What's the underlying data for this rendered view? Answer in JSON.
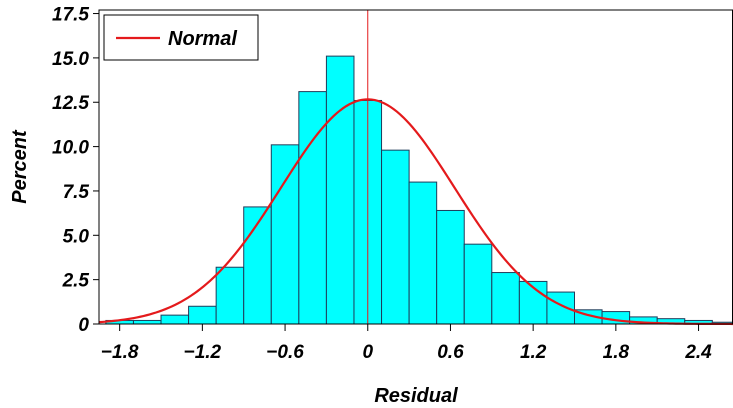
{
  "chart_data": {
    "type": "bar",
    "subtype": "histogram with fitted normal curve",
    "xlabel": "Residual",
    "ylabel": "Percent",
    "xlim": [
      -1.95,
      2.65
    ],
    "ylim": [
      0,
      17.7
    ],
    "x_ticks": [
      -1.8,
      -1.2,
      -0.6,
      0,
      0.6,
      1.2,
      1.8,
      2.4
    ],
    "x_tick_labels": [
      "−1.8",
      "−1.2",
      "−0.6",
      "0",
      "0.6",
      "1.2",
      "1.8",
      "2.4"
    ],
    "y_ticks": [
      0,
      2.5,
      5,
      7.5,
      10,
      12.5,
      15,
      17.5
    ],
    "y_tick_labels": [
      "0",
      "2.5",
      "5.0",
      "7.5",
      "10.0",
      "12.5",
      "15.0",
      "17.5"
    ],
    "bin_width": 0.2,
    "bins": [
      {
        "x0": -1.9,
        "x1": -1.7,
        "value": 0.2
      },
      {
        "x0": -1.7,
        "x1": -1.5,
        "value": 0.2
      },
      {
        "x0": -1.5,
        "x1": -1.3,
        "value": 0.5
      },
      {
        "x0": -1.3,
        "x1": -1.1,
        "value": 1.0
      },
      {
        "x0": -1.1,
        "x1": -0.9,
        "value": 3.2
      },
      {
        "x0": -0.9,
        "x1": -0.7,
        "value": 6.6
      },
      {
        "x0": -0.7,
        "x1": -0.5,
        "value": 10.1
      },
      {
        "x0": -0.5,
        "x1": -0.3,
        "value": 13.1
      },
      {
        "x0": -0.3,
        "x1": -0.1,
        "value": 15.1
      },
      {
        "x0": -0.1,
        "x1": 0.1,
        "value": 12.6
      },
      {
        "x0": 0.1,
        "x1": 0.3,
        "value": 9.8
      },
      {
        "x0": 0.3,
        "x1": 0.5,
        "value": 8.0
      },
      {
        "x0": 0.5,
        "x1": 0.7,
        "value": 6.4
      },
      {
        "x0": 0.7,
        "x1": 0.9,
        "value": 4.5
      },
      {
        "x0": 0.9,
        "x1": 1.1,
        "value": 2.9
      },
      {
        "x0": 1.1,
        "x1": 1.3,
        "value": 2.4
      },
      {
        "x0": 1.3,
        "x1": 1.5,
        "value": 1.8
      },
      {
        "x0": 1.5,
        "x1": 1.7,
        "value": 0.8
      },
      {
        "x0": 1.7,
        "x1": 1.9,
        "value": 0.7
      },
      {
        "x0": 1.9,
        "x1": 2.1,
        "value": 0.4
      },
      {
        "x0": 2.1,
        "x1": 2.3,
        "value": 0.3
      },
      {
        "x0": 2.3,
        "x1": 2.5,
        "value": 0.2
      },
      {
        "x0": 2.5,
        "x1": 2.7,
        "value": 0.1
      }
    ],
    "normal_curve": {
      "name": "Normal",
      "mean": 0.0,
      "sd": 0.63,
      "color": "#e41a1c"
    },
    "reference_line_x": 0,
    "legend": {
      "position": "top-left",
      "entries": [
        "Normal"
      ]
    },
    "grid": false,
    "colors": {
      "bar_fill": "#00ffff",
      "bar_stroke": "#1f3c5a",
      "curve": "#e41a1c",
      "reference_line": "#e41a1c",
      "axis": "#000000"
    }
  }
}
